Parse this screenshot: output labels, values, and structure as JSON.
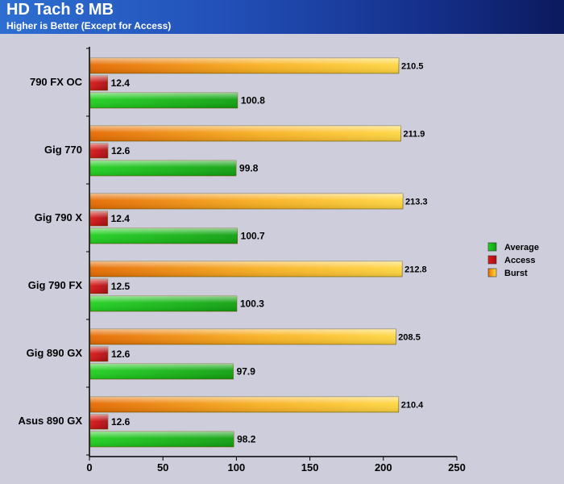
{
  "header": {
    "title": "HD Tach 8 MB",
    "subtitle": "Higher is Better (Except for Access)"
  },
  "chart_data": {
    "type": "bar",
    "orientation": "horizontal",
    "title": "HD Tach 8 MB",
    "subtitle": "Higher is Better (Except for Access)",
    "xlabel": "",
    "ylabel": "",
    "xlim": [
      0,
      250
    ],
    "ticks": [
      0,
      50,
      100,
      150,
      200,
      250
    ],
    "grid": false,
    "legend_position": "right",
    "categories": [
      "790 FX OC",
      "Gig 770",
      "Gig 790 X",
      "Gig 790 FX",
      "Gig 890 GX",
      "Asus 890 GX"
    ],
    "series": [
      {
        "name": "Burst",
        "values": [
          210.5,
          211.9,
          213.3,
          212.8,
          208.5,
          210.4
        ],
        "color": "#f5a623"
      },
      {
        "name": "Access",
        "values": [
          12.4,
          12.6,
          12.4,
          12.5,
          12.6,
          12.6
        ],
        "color": "#c8141e"
      },
      {
        "name": "Average",
        "values": [
          100.8,
          99.8,
          100.7,
          100.3,
          97.9,
          98.2
        ],
        "color": "#22bb22"
      }
    ],
    "legend_order": [
      "Average",
      "Access",
      "Burst"
    ]
  }
}
